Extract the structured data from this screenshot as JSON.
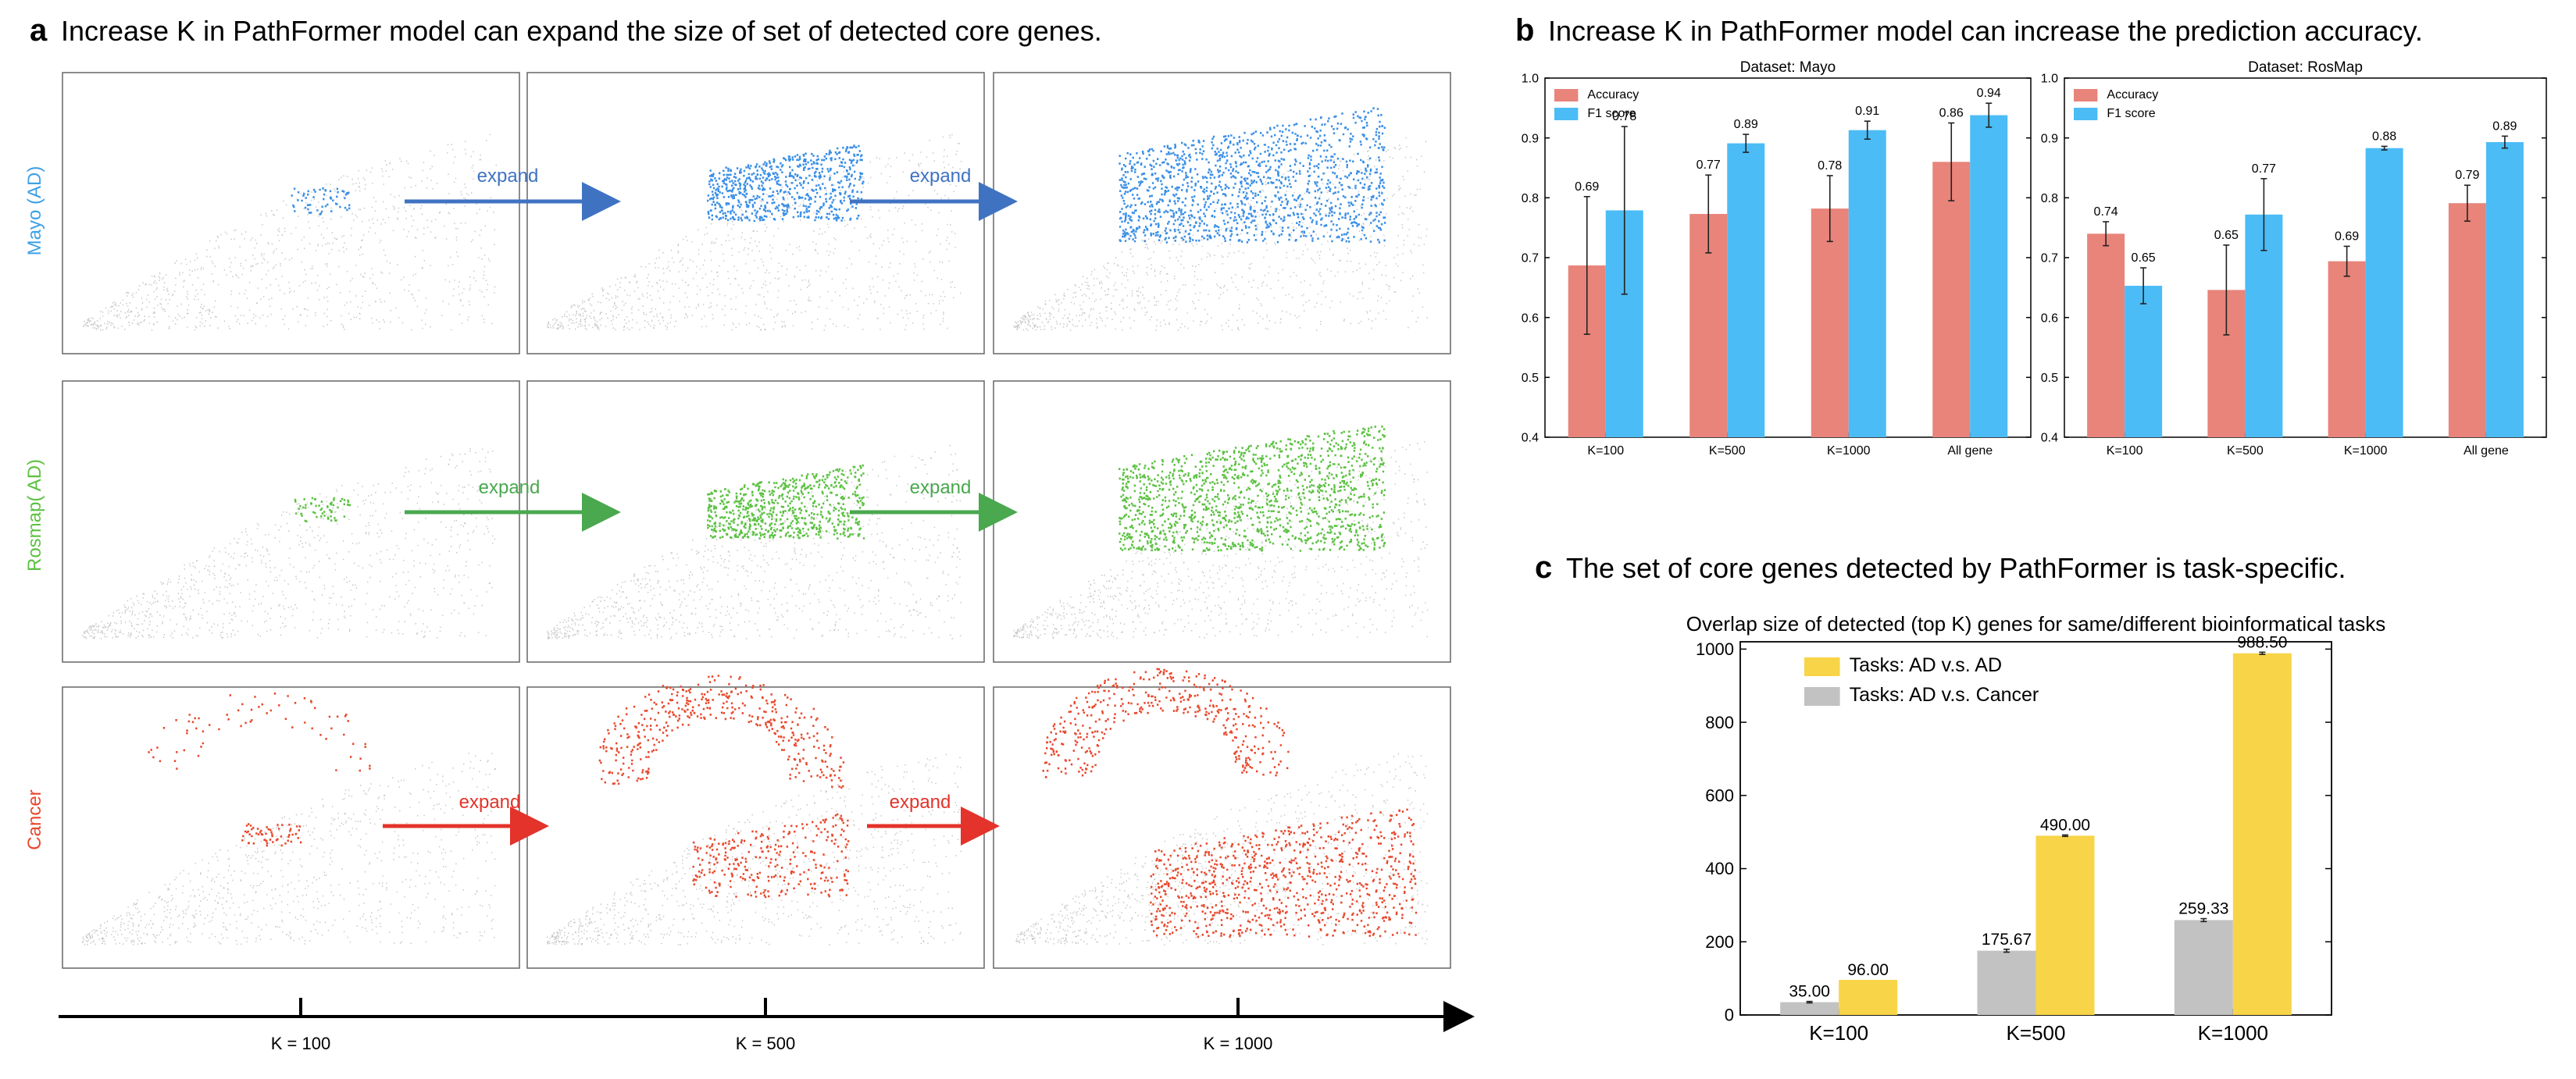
{
  "panel_a": {
    "letter": "a",
    "heading": "Increase K in PathFormer model can expand the size of set of detected core genes.",
    "row_labels": [
      "Mayo (AD)",
      "Rosmap( AD)",
      "Cancer"
    ],
    "expand_label": "expand",
    "axis_ticks": [
      "K = 100",
      "K = 500",
      "K = 1000"
    ],
    "colors": {
      "mayo": "#3a8fe6",
      "rosmap": "#5cc142",
      "cancer": "#e8482c",
      "background": "#c8c8c8",
      "arrow_mayo": "#3f73c2",
      "arrow_rosmap": "#4aa84f",
      "arrow_cancer": "#e3332a"
    }
  },
  "panel_b": {
    "letter": "b",
    "heading": "Increase K in PathFormer model can increase the prediction accuracy.",
    "legend": [
      "Accuracy",
      "F1 score"
    ],
    "colors": {
      "accuracy": "#e8847a",
      "f1": "#4bbcf5"
    }
  },
  "panel_c": {
    "letter": "c",
    "heading": "The set of core genes detected by PathFormer is task-specific.",
    "colors": {
      "ad_ad": "#f8d448",
      "ad_cancer": "#c2c2c2"
    }
  },
  "chart_data": [
    {
      "type": "bar",
      "title": "Dataset: Mayo",
      "categories": [
        "K=100",
        "K=500",
        "K=1000",
        "All gene"
      ],
      "ylim": [
        0.4,
        1.0
      ],
      "yticks": [
        "0.4",
        "0.5",
        "0.6",
        "0.7",
        "0.8",
        "0.9",
        "1.0"
      ],
      "series": [
        {
          "name": "Accuracy",
          "values": [
            0.687,
            0.773,
            0.782,
            0.86
          ],
          "errors": [
            0.115,
            0.065,
            0.055,
            0.065
          ],
          "labels": [
            "0.69",
            "0.77",
            "0.78",
            "0.86"
          ]
        },
        {
          "name": "F1 score",
          "values": [
            0.779,
            0.891,
            0.913,
            0.938
          ],
          "errors": [
            0.14,
            0.015,
            0.015,
            0.02
          ],
          "labels": [
            "0.78",
            "0.89",
            "0.91",
            "0.94"
          ]
        }
      ],
      "legend_position": "top-left"
    },
    {
      "type": "bar",
      "title": "Dataset: RosMap",
      "categories": [
        "K=100",
        "K=500",
        "K=1000",
        "All gene"
      ],
      "ylim": [
        0.4,
        1.0
      ],
      "yticks": [
        "0.4",
        "0.5",
        "0.6",
        "0.7",
        "0.8",
        "0.9",
        "1.0"
      ],
      "series": [
        {
          "name": "Accuracy",
          "values": [
            0.74,
            0.646,
            0.694,
            0.791
          ],
          "errors": [
            0.02,
            0.075,
            0.025,
            0.03
          ],
          "labels": [
            "0.74",
            "0.65",
            "0.69",
            "0.79"
          ]
        },
        {
          "name": "F1 score",
          "values": [
            0.653,
            0.772,
            0.883,
            0.893
          ],
          "errors": [
            0.03,
            0.06,
            0.003,
            0.01
          ],
          "labels": [
            "0.65",
            "0.77",
            "0.88",
            "0.89"
          ]
        }
      ],
      "legend_position": "top-left"
    },
    {
      "type": "bar",
      "title": "Overlap size of detected (top K) genes for same/different bioinformatical tasks",
      "categories": [
        "K=100",
        "K=500",
        "K=1000"
      ],
      "ylim": [
        0,
        1020
      ],
      "yticks": [
        "0",
        "200",
        "400",
        "600",
        "800",
        "1000"
      ],
      "series": [
        {
          "name": "Tasks: AD v.s. Cancer",
          "values": [
            35.0,
            175.67,
            259.33
          ],
          "errors": [
            2,
            4,
            4
          ],
          "labels": [
            "35.00",
            "175.67",
            "259.33"
          ]
        },
        {
          "name": "Tasks: AD v.s. AD",
          "values": [
            96.0,
            490.0,
            988.5
          ],
          "errors": [
            0,
            2,
            3
          ],
          "labels": [
            "96.00",
            "490.00",
            "988.50"
          ]
        }
      ],
      "legend_position": "top-left"
    }
  ]
}
